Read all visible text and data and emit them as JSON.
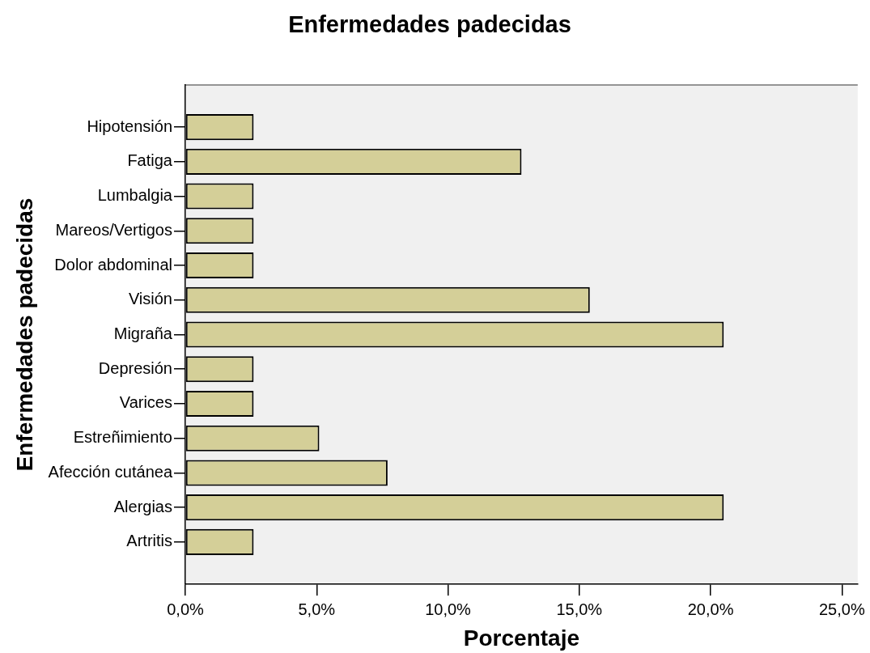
{
  "chart_data": {
    "type": "bar",
    "orientation": "horizontal",
    "title": "Enfermedades padecidas",
    "xlabel": "Porcentaje",
    "ylabel": "Enfermedades padecidas",
    "categories": [
      "Hipotensión",
      "Fatiga",
      "Lumbalgia",
      "Mareos/Vertigos",
      "Dolor abdominal",
      "Visión",
      "Migraña",
      "Depresión",
      "Varices",
      "Estreñimiento",
      "Afección cutánea",
      "Alergias",
      "Artritis"
    ],
    "values": [
      2.6,
      12.8,
      2.6,
      2.6,
      2.6,
      15.4,
      20.5,
      2.6,
      2.6,
      5.1,
      7.7,
      20.5,
      2.6
    ],
    "color": "#d4cf98",
    "xlim": [
      0,
      25.6
    ],
    "xticks": [
      {
        "value": 0,
        "label": "0,0%"
      },
      {
        "value": 5,
        "label": "5,0%"
      },
      {
        "value": 10,
        "label": "10,0%"
      },
      {
        "value": 15,
        "label": "15,0%"
      },
      {
        "value": 20,
        "label": "20,0%"
      },
      {
        "value": 25,
        "label": "25,0%"
      }
    ]
  }
}
